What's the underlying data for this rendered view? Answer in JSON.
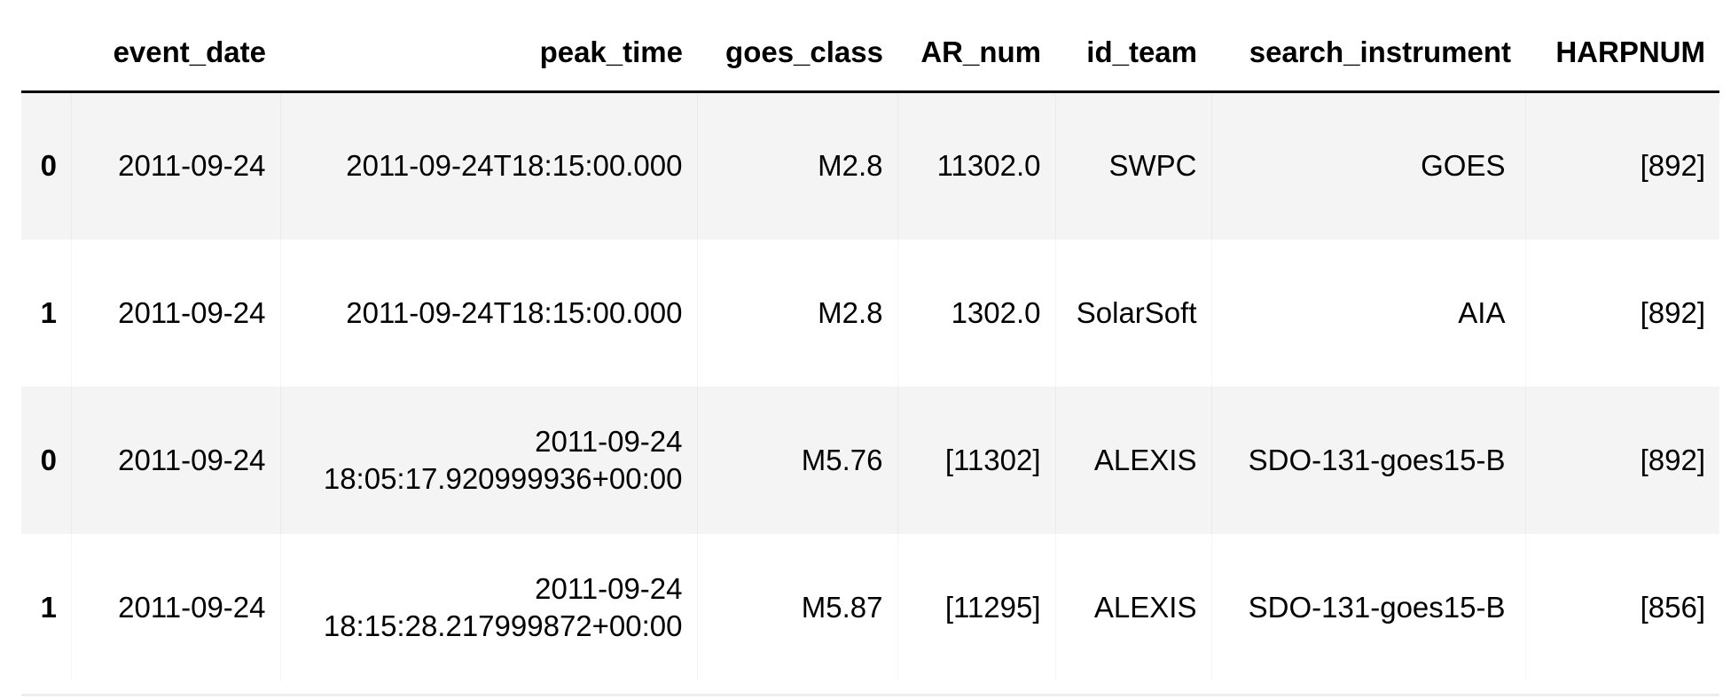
{
  "table": {
    "columns": [
      "",
      "event_date",
      "peak_time",
      "goes_class",
      "AR_num",
      "id_team",
      "search_instrument",
      "HARPNUM"
    ],
    "rows": [
      {
        "index": "0",
        "event_date": "2011-09-24",
        "peak_time": "2011-09-24T18:15:00.000",
        "goes_class": "M2.8",
        "AR_num": "11302.0",
        "id_team": "SWPC",
        "search_instrument": "GOES",
        "HARPNUM": "[892]"
      },
      {
        "index": "1",
        "event_date": "2011-09-24",
        "peak_time": "2011-09-24T18:15:00.000",
        "goes_class": "M2.8",
        "AR_num": "1302.0",
        "id_team": "SolarSoft",
        "search_instrument": "AIA",
        "HARPNUM": "[892]"
      },
      {
        "index": "0",
        "event_date": "2011-09-24",
        "peak_time": "2011-09-24 18:05:17.920999936+00:00",
        "goes_class": "M5.76",
        "AR_num": "[11302]",
        "id_team": "ALEXIS",
        "search_instrument": "SDO-131-goes15-B",
        "HARPNUM": "[892]"
      },
      {
        "index": "1",
        "event_date": "2011-09-24",
        "peak_time": "2011-09-24 18:15:28.217999872+00:00",
        "goes_class": "M5.87",
        "AR_num": "[11295]",
        "id_team": "ALEXIS",
        "search_instrument": "SDO-131-goes15-B",
        "HARPNUM": "[856]"
      }
    ]
  }
}
